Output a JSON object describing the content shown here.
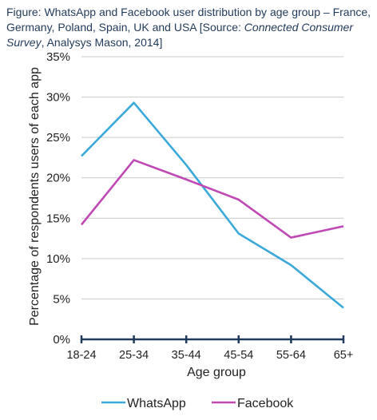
{
  "caption": {
    "part1": "Figure: WhatsApp and Facebook user distribution by age group – France, Germany, Poland, Spain, UK and USA [Source: ",
    "italic1": "Connected Consumer Survey",
    "part2": ", Analysys Mason, 2014]"
  },
  "chart_data": {
    "type": "line",
    "title": "",
    "xlabel": "Age group",
    "ylabel": "Percentage of respondents users of each app",
    "categories": [
      "18-24",
      "25-34",
      "35-44",
      "45-54",
      "55-64",
      "65+"
    ],
    "ylim": [
      0,
      35
    ],
    "yticks": [
      0,
      5,
      10,
      15,
      20,
      25,
      30,
      35
    ],
    "ytick_labels": [
      "0%",
      "5%",
      "10%",
      "15%",
      "20%",
      "25%",
      "30%",
      "35%"
    ],
    "grid": true,
    "legend_position": "bottom",
    "series": [
      {
        "name": "WhatsApp",
        "color": "#3aa9d9",
        "values": [
          22.7,
          29.3,
          21.6,
          13.1,
          9.2,
          3.9
        ]
      },
      {
        "name": "Facebook",
        "color": "#c048b5",
        "values": [
          14.2,
          22.2,
          19.8,
          17.3,
          12.6,
          14.0
        ]
      }
    ]
  }
}
